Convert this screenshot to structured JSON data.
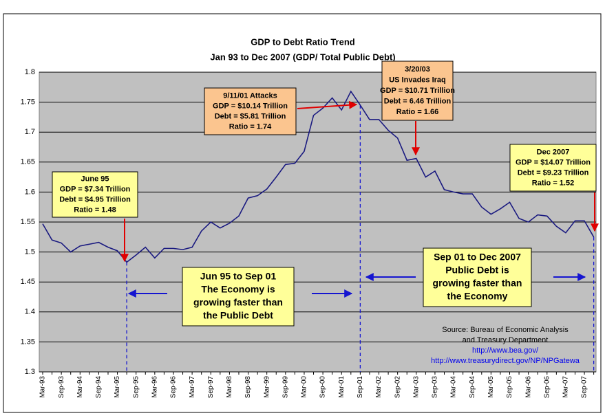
{
  "chart_data": {
    "type": "line",
    "title": "GDP to Debt Ratio Trend",
    "subtitle": "Jan 93 to Dec 2007 (GDP/ Total Public Debt)",
    "categories": [
      "Mar-93",
      null,
      "Sep-93",
      null,
      "Mar-94",
      null,
      "Sep-94",
      null,
      "Mar-95",
      null,
      "Sep-95",
      null,
      "Mar-96",
      null,
      "Sep-96",
      null,
      "Mar-97",
      null,
      "Sep-97",
      null,
      "Mar-98",
      null,
      "Sep-98",
      null,
      "Mar-99",
      null,
      "Sep-99",
      null,
      "Mar-00",
      null,
      "Sep-00",
      null,
      "Mar-01",
      null,
      "Sep-01",
      null,
      "Mar-02",
      null,
      "Sep-02",
      null,
      "Mar-03",
      null,
      "Sep-03",
      null,
      "Mar-04",
      null,
      "Sep-04",
      null,
      "Mar-05",
      null,
      "Sep-05",
      null,
      "Mar-06",
      null,
      "Sep-06",
      null,
      "Mar-07",
      null,
      "Sep-07",
      null
    ],
    "series": [
      {
        "name": "GDP/Debt",
        "color": "#1a1a80",
        "values": [
          1.547,
          1.52,
          1.515,
          1.5,
          1.51,
          1.513,
          1.516,
          1.508,
          1.502,
          1.483,
          1.495,
          1.508,
          1.49,
          1.506,
          1.506,
          1.504,
          1.508,
          1.535,
          1.55,
          1.54,
          1.548,
          1.56,
          1.59,
          1.594,
          1.605,
          1.625,
          1.646,
          1.648,
          1.668,
          1.728,
          1.74,
          1.757,
          1.737,
          1.768,
          1.745,
          1.721,
          1.721,
          1.703,
          1.69,
          1.653,
          1.656,
          1.625,
          1.635,
          1.604,
          1.6,
          1.597,
          1.597,
          1.575,
          1.563,
          1.572,
          1.583,
          1.556,
          1.55,
          1.562,
          1.56,
          1.543,
          1.532,
          1.552,
          1.552,
          1.525
        ]
      }
    ],
    "ylim": [
      1.3,
      1.8
    ],
    "yticks": [
      1.3,
      1.35,
      1.4,
      1.45,
      1.5,
      1.55,
      1.6,
      1.65,
      1.7,
      1.75,
      1.8
    ],
    "grid": true,
    "annotations": [
      {
        "lines": [
          "June 95",
          "GDP = $7.34 Trillion",
          "Debt = $4.95 Trillion",
          "Ratio = 1.48"
        ]
      },
      {
        "lines": [
          "9/11/01 Attacks",
          "GDP = $10.14 Trillion",
          "Debt = $5.81 Trillion",
          "Ratio = 1.74"
        ]
      },
      {
        "lines": [
          "3/20/03",
          "US Invades Iraq",
          "GDP = $10.71 Trillion",
          "Debt = 6.46 Trillion",
          "Ratio = 1.66"
        ]
      },
      {
        "lines": [
          "Dec 2007",
          "GDP = $14.07 Trillion",
          "Debt = $9.23 Trillion",
          "Ratio = 1.52"
        ]
      },
      {
        "lines": [
          "Jun 95 to Sep 01",
          "The Economy is",
          "growing faster than",
          "the Public Debt"
        ]
      },
      {
        "lines": [
          "Sep 01 to Dec 2007",
          "Public Debt is",
          "growing faster than",
          "the Economy"
        ]
      }
    ],
    "source": [
      "Source: Bureau of Economic Analysis",
      "and Treasury Department",
      "http://www.bea.gov/",
      "http://www.treasurydirect.gov/NP/NPGatewa"
    ]
  }
}
